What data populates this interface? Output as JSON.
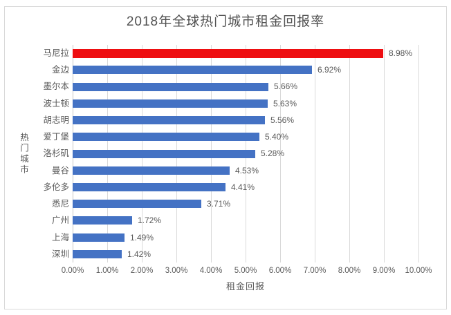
{
  "title": "2018年全球热门城市租金回报率",
  "chart_data": {
    "type": "bar",
    "orientation": "horizontal",
    "title": "2018年全球热门城市租金回报率",
    "categories": [
      "马尼拉",
      "金边",
      "墨尔本",
      "波士顿",
      "胡志明",
      "爱丁堡",
      "洛杉矶",
      "曼谷",
      "多伦多",
      "悉尼",
      "广州",
      "上海",
      "深圳"
    ],
    "values": [
      8.98,
      6.92,
      5.66,
      5.63,
      5.56,
      5.4,
      5.28,
      4.53,
      4.41,
      3.71,
      1.72,
      1.49,
      1.42
    ],
    "data_labels": [
      "8.98%",
      "6.92%",
      "5.66%",
      "5.63%",
      "5.56%",
      "5.40%",
      "5.28%",
      "4.53%",
      "4.41%",
      "3.71%",
      "1.72%",
      "1.49%",
      "1.42%"
    ],
    "xlabel": "租金回报",
    "ylabel": "热门城市",
    "xlim": [
      0,
      10
    ],
    "x_ticks": [
      "0.00%",
      "1.00%",
      "2.00%",
      "3.00%",
      "4.00%",
      "5.00%",
      "6.00%",
      "7.00%",
      "8.00%",
      "9.00%",
      "10.00%"
    ],
    "grid": true,
    "legend": false,
    "highlight_index": 0,
    "colors": {
      "bar": "#4472c4",
      "highlight": "#ee0e11",
      "gridline": "#d9d9d9",
      "text": "#595959"
    }
  }
}
